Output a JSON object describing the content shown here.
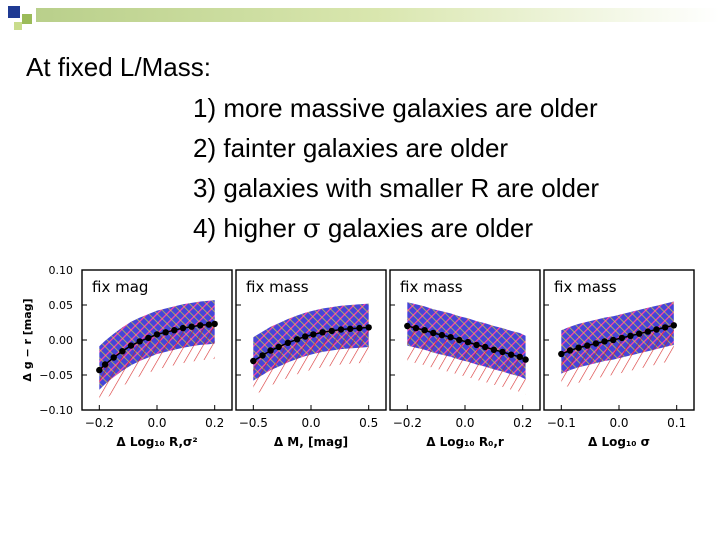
{
  "slide": {
    "title": "At fixed L/Mass:",
    "items": [
      {
        "num": "1)",
        "text": "more massive galaxies are older"
      },
      {
        "num": "2)",
        "text": "fainter galaxies are older"
      },
      {
        "num": "3)",
        "text": "galaxies with smaller R are older"
      },
      {
        "num": "4)",
        "pre": "higher ",
        "sym": "σ",
        "post": " galaxies are older"
      }
    ],
    "colors": {
      "deco_blue": "#1f3a93",
      "deco_green": "#9bbb59",
      "deco_lime": "#c9dc8c"
    }
  },
  "chart_data": [
    {
      "type": "line",
      "title": "fix mag",
      "xlabel": "Δ Log₁₀ R,σ²",
      "ylabel": "Δ g − r [mag]",
      "xlim": [
        -0.26,
        0.26
      ],
      "ylim": [
        -0.1,
        0.1
      ],
      "xticks": [
        "−0.2",
        "0.0",
        "0.2"
      ],
      "xtick_values": [
        -0.2,
        0.0,
        0.2
      ],
      "yticks": [
        "0.10",
        "0.05",
        "0.00",
        "−0.05",
        "−0.10"
      ],
      "ytick_values": [
        0.1,
        0.05,
        0.0,
        -0.05,
        -0.1
      ],
      "grid": false,
      "x": [
        -0.2,
        -0.18,
        -0.15,
        -0.12,
        -0.09,
        -0.06,
        -0.03,
        0.0,
        0.03,
        0.06,
        0.09,
        0.12,
        0.15,
        0.18,
        0.2
      ],
      "y": [
        -0.043,
        -0.035,
        -0.025,
        -0.016,
        -0.008,
        -0.002,
        0.003,
        0.008,
        0.011,
        0.014,
        0.017,
        0.019,
        0.021,
        0.022,
        0.023
      ]
    },
    {
      "type": "line",
      "title": "fix mass",
      "xlabel": "Δ M, [mag]",
      "ylabel": "",
      "xlim": [
        -0.65,
        0.65
      ],
      "ylim": [
        -0.1,
        0.1
      ],
      "xticks": [
        "−0.5",
        "0.0",
        "0.5"
      ],
      "xtick_values": [
        -0.5,
        0.0,
        0.5
      ],
      "grid": false,
      "x": [
        -0.5,
        -0.42,
        -0.35,
        -0.28,
        -0.2,
        -0.12,
        -0.05,
        0.02,
        0.1,
        0.18,
        0.26,
        0.34,
        0.42,
        0.5
      ],
      "y": [
        -0.03,
        -0.022,
        -0.015,
        -0.01,
        -0.004,
        0.001,
        0.005,
        0.008,
        0.011,
        0.013,
        0.015,
        0.016,
        0.017,
        0.018
      ]
    },
    {
      "type": "line",
      "title": "fix mass",
      "xlabel": "Δ Log₁₀ R₀,r",
      "ylabel": "",
      "xlim": [
        -0.26,
        0.26
      ],
      "ylim": [
        -0.1,
        0.1
      ],
      "xticks": [
        "−0.2",
        "0.0",
        "0.2"
      ],
      "xtick_values": [
        -0.2,
        0.0,
        0.2
      ],
      "grid": false,
      "x": [
        -0.2,
        -0.17,
        -0.14,
        -0.11,
        -0.08,
        -0.05,
        -0.02,
        0.01,
        0.04,
        0.07,
        0.1,
        0.13,
        0.16,
        0.19,
        0.21
      ],
      "y": [
        0.02,
        0.017,
        0.014,
        0.01,
        0.007,
        0.004,
        0.0,
        -0.003,
        -0.007,
        -0.01,
        -0.014,
        -0.017,
        -0.021,
        -0.024,
        -0.028
      ]
    },
    {
      "type": "line",
      "title": "fix mass",
      "xlabel": "Δ Log₁₀ σ",
      "ylabel": "",
      "xlim": [
        -0.13,
        0.13
      ],
      "ylim": [
        -0.1,
        0.1
      ],
      "xticks": [
        "−0.1",
        "0.0",
        "0.1"
      ],
      "xtick_values": [
        -0.1,
        0.0,
        0.1
      ],
      "grid": false,
      "x": [
        -0.1,
        -0.085,
        -0.07,
        -0.055,
        -0.04,
        -0.025,
        -0.01,
        0.005,
        0.02,
        0.035,
        0.05,
        0.065,
        0.08,
        0.095
      ],
      "y": [
        -0.02,
        -0.015,
        -0.011,
        -0.008,
        -0.005,
        -0.002,
        0.0,
        0.003,
        0.006,
        0.009,
        0.012,
        0.015,
        0.018,
        0.021
      ]
    }
  ]
}
